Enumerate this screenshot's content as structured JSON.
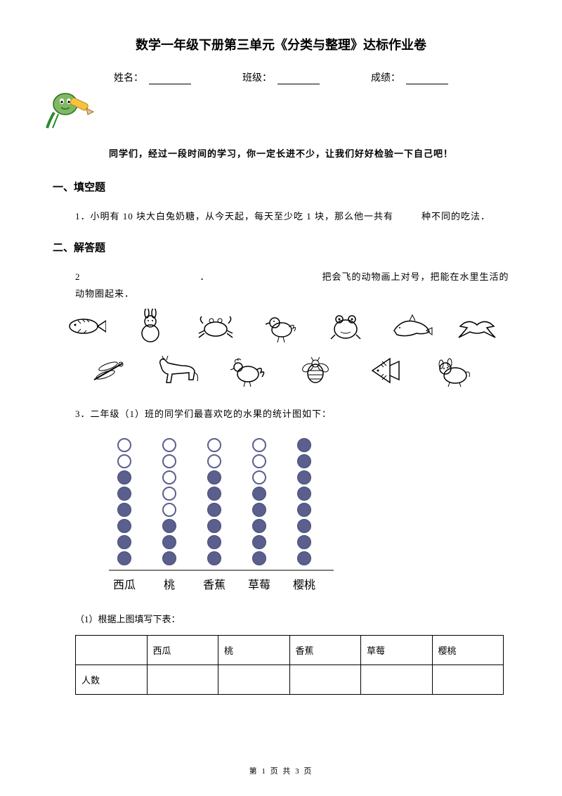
{
  "title": "数学一年级下册第三单元《分类与整理》达标作业卷",
  "info": {
    "name_label": "姓名：",
    "class_label": "班级：",
    "score_label": "成绩："
  },
  "intro": "同学们，经过一段时间的学习，你一定长进不少，让我们好好检验一下自己吧！",
  "section1": "一、填空题",
  "q1_num": "1．",
  "q1_a": "小明有 10 块大白兔奶糖，从今天起，每天至少吃 1 块，那么他一共有",
  "q1_b": "种不同的吃法．",
  "section2": "二、解答题",
  "q2_num": "2",
  "q2_dot": "．",
  "q2_text": "把会飞的动物画上对号，把能在水里生活的动物圈起来．",
  "q3": "3．二年级（1）班的同学们最喜欢吃的水果的统计图如下：",
  "chart": {
    "total_rows": 8,
    "columns": [
      {
        "label": "西瓜",
        "filled": 6
      },
      {
        "label": "桃",
        "filled": 3
      },
      {
        "label": "香蕉",
        "filled": 6
      },
      {
        "label": "草莓",
        "filled": 5
      },
      {
        "label": "樱桃",
        "filled": 8
      }
    ],
    "fill_color": "#5b5f8e",
    "empty_border": "#5b5f8e",
    "axis_color": "#808080",
    "label_fontsize": 16
  },
  "q3_sub": "（1）根据上图填写下表：",
  "table": {
    "headers": [
      "",
      "西瓜",
      "桃",
      "香蕉",
      "草莓",
      "樱桃"
    ],
    "row_label": "人数"
  },
  "footer": "第 1 页 共 3 页"
}
